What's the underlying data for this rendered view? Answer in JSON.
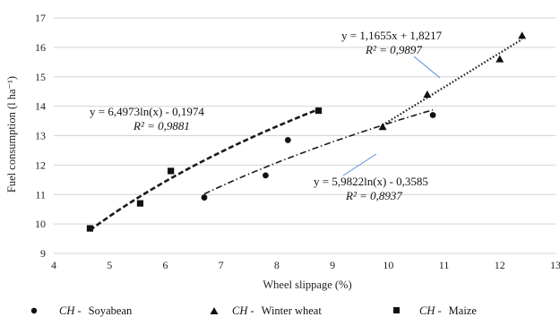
{
  "chart_data": {
    "type": "scatter",
    "title": "",
    "xlabel": "Wheel slippage (%)",
    "ylabel": "Fuel consumption (l ha⁻¹)",
    "xlim": [
      4,
      13
    ],
    "ylim": [
      9,
      17
    ],
    "x_ticks": [
      "4",
      "5",
      "6",
      "7",
      "8",
      "9",
      "10",
      "11",
      "12",
      "13"
    ],
    "y_ticks": [
      "9",
      "10",
      "11",
      "12",
      "13",
      "14",
      "15",
      "16",
      "17"
    ],
    "grid": "horizontal",
    "series": [
      {
        "name": "CH - Soyabean",
        "legend_prefix": "CH -",
        "legend_label": "Soyabean",
        "marker": "circle",
        "points": [
          [
            6.7,
            10.9
          ],
          [
            7.8,
            11.65
          ],
          [
            8.2,
            12.85
          ],
          [
            10.8,
            13.7
          ]
        ],
        "trend": {
          "kind": "log",
          "a": 5.9822,
          "b": -0.3585,
          "x_range": [
            6.7,
            10.8
          ],
          "style": "dash-dot",
          "equation": "y = 5,9822ln(x) - 0,3585",
          "r2": "R² = 0,8937"
        }
      },
      {
        "name": "CH - Winter wheat",
        "legend_prefix": "CH -",
        "legend_label": "Winter wheat",
        "marker": "triangle",
        "points": [
          [
            9.9,
            13.3
          ],
          [
            10.7,
            14.4
          ],
          [
            12.0,
            15.6
          ],
          [
            12.4,
            16.4
          ]
        ],
        "trend": {
          "kind": "linear",
          "a": 1.1655,
          "b": 1.8217,
          "x_range": [
            9.9,
            12.4
          ],
          "style": "dotted",
          "equation": "y = 1,1655x + 1,8217",
          "r2": "R² = 0,9897"
        }
      },
      {
        "name": "CH - Maize",
        "legend_prefix": "CH -",
        "legend_label": "Maize",
        "marker": "square",
        "points": [
          [
            4.65,
            9.85
          ],
          [
            5.55,
            10.7
          ],
          [
            6.1,
            11.8
          ],
          [
            8.75,
            13.85
          ]
        ],
        "trend": {
          "kind": "log",
          "a": 6.4973,
          "b": -0.1974,
          "x_range": [
            4.65,
            8.75
          ],
          "style": "dashed",
          "equation": "y = 6,4973ln(x) - 0,1974",
          "r2": "R² = 0,9881"
        }
      }
    ]
  }
}
